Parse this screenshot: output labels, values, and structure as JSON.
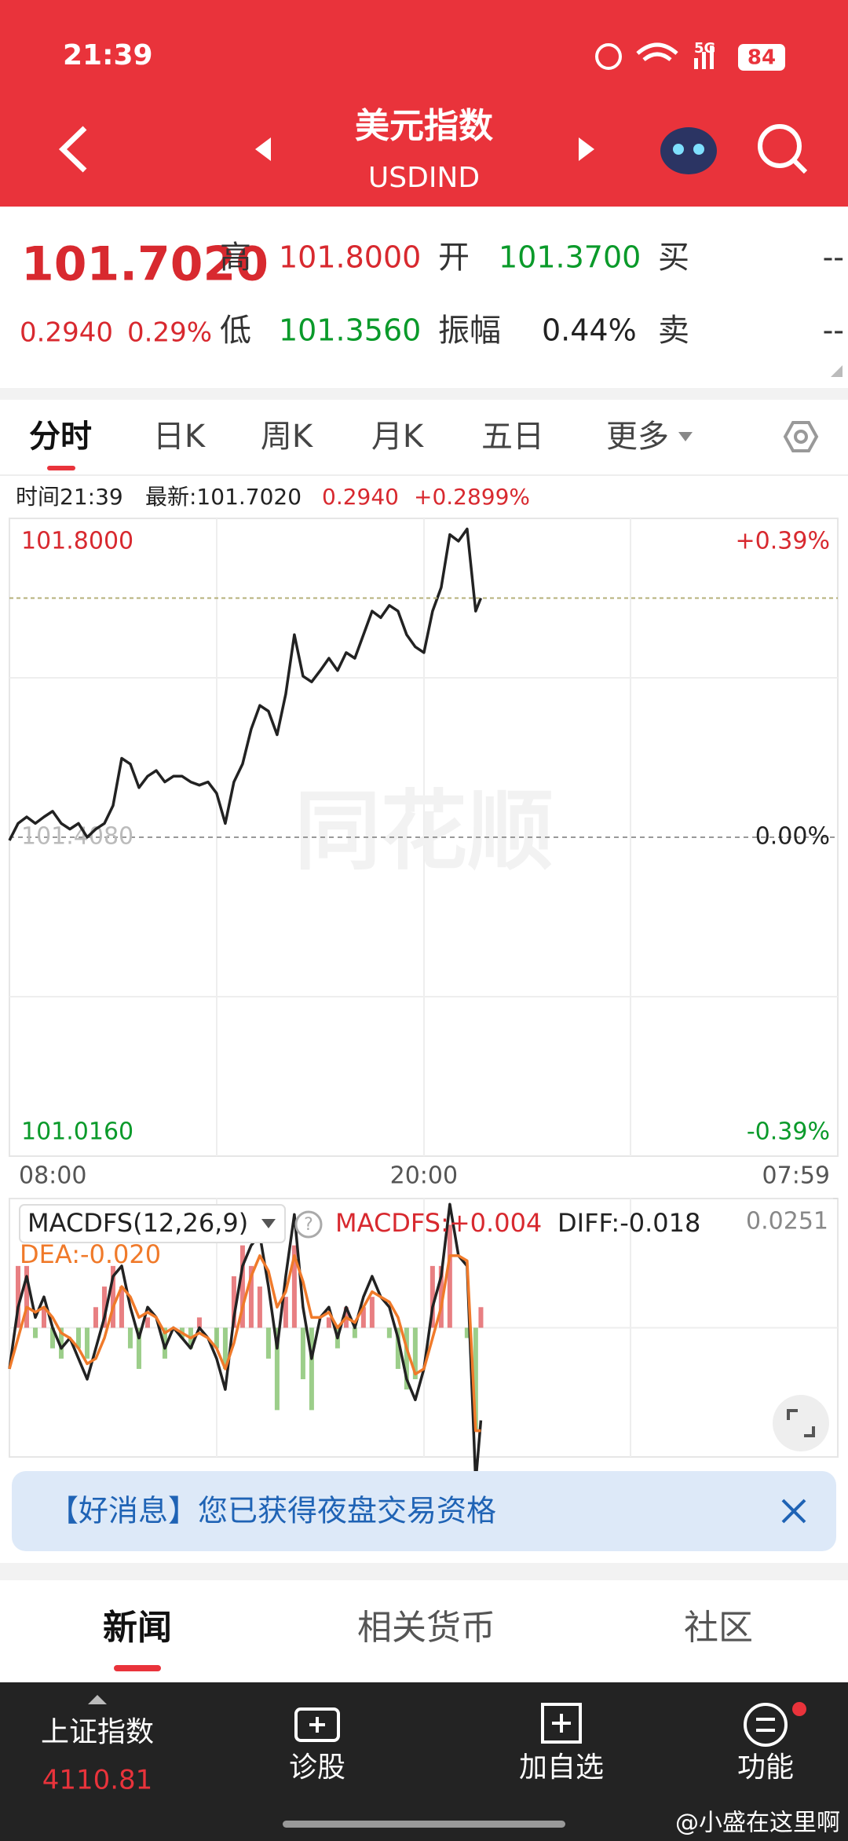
{
  "status_bar": {
    "time": "21:39",
    "network": "5G",
    "battery": "84"
  },
  "header": {
    "title": "美元指数",
    "subtitle": "USDIND"
  },
  "quote": {
    "price": "101.7020",
    "change": "0.2940",
    "change_pct": "0.29%",
    "high_label": "高",
    "high": "101.8000",
    "open_label": "开",
    "open": "101.3700",
    "buy_label": "买",
    "buy": "--",
    "low_label": "低",
    "low": "101.3560",
    "amplitude_label": "振幅",
    "amplitude": "0.44%",
    "sell_label": "卖",
    "sell": "--"
  },
  "tabs": [
    "分时",
    "日K",
    "周K",
    "月K",
    "五日",
    "更多"
  ],
  "info_line": {
    "time": "时间21:39",
    "latest": "最新:101.7020",
    "change": "0.2940",
    "change_pct": "+0.2899%"
  },
  "chart_data": [
    {
      "type": "line",
      "watermark": "同花顺",
      "x": [
        "08:00",
        "08:15",
        "08:30",
        "08:45",
        "09:00",
        "09:15",
        "09:30",
        "09:45",
        "10:00",
        "10:15",
        "10:30",
        "10:45",
        "11:00",
        "11:15",
        "11:30",
        "11:45",
        "12:00",
        "12:15",
        "12:30",
        "12:45",
        "13:00",
        "13:15",
        "13:30",
        "13:45",
        "14:00",
        "14:15",
        "14:30",
        "14:45",
        "15:00",
        "15:15",
        "15:30",
        "15:45",
        "16:00",
        "16:15",
        "16:30",
        "16:45",
        "17:00",
        "17:15",
        "17:30",
        "17:45",
        "18:00",
        "18:15",
        "18:30",
        "18:45",
        "19:00",
        "19:15",
        "19:30",
        "19:45",
        "20:00",
        "20:15",
        "20:30",
        "20:45",
        "21:00",
        "21:15",
        "21:30",
        "21:39"
      ],
      "xlim": [
        "08:00",
        "07:59"
      ],
      "xticks": [
        "08:00",
        "20:00",
        "07:59"
      ],
      "ylim": [
        101.016,
        101.8
      ],
      "yticks": [
        {
          "value": 101.8,
          "label": "101.8000"
        },
        {
          "value": 101.408,
          "label": "101.4080"
        },
        {
          "value": 101.016,
          "label": "101.0160"
        }
      ],
      "y2lim": [
        -0.39,
        0.39
      ],
      "y2ticks": [
        {
          "value": 0.39,
          "label": "+0.39%"
        },
        {
          "value": 0,
          "label": "0.00%"
        },
        {
          "value": -0.39,
          "label": "-0.39%"
        }
      ],
      "series": [
        {
          "color": "#222222",
          "values": [
            101.404,
            101.425,
            101.433,
            101.425,
            101.433,
            101.44,
            101.425,
            101.418,
            101.425,
            101.408,
            101.418,
            101.425,
            101.447,
            101.505,
            101.498,
            101.469,
            101.483,
            101.49,
            101.476,
            101.483,
            101.483,
            101.476,
            101.472,
            101.476,
            101.462,
            101.425,
            101.476,
            101.498,
            101.541,
            101.57,
            101.563,
            101.534,
            101.584,
            101.657,
            101.606,
            101.599,
            101.613,
            101.628,
            101.613,
            101.635,
            101.628,
            101.657,
            101.686,
            101.678,
            101.693,
            101.686,
            101.657,
            101.642,
            101.635,
            101.686,
            101.715,
            101.78,
            101.772,
            101.787,
            101.686,
            101.702
          ]
        }
      ]
    },
    {
      "type": "macd",
      "title": "MACDFS(12,26,9)",
      "x": [
        "08:00",
        "08:15",
        "08:30",
        "08:45",
        "09:00",
        "09:15",
        "09:30",
        "09:45",
        "10:00",
        "10:15",
        "10:30",
        "10:45",
        "11:00",
        "11:15",
        "11:30",
        "11:45",
        "12:00",
        "12:15",
        "12:30",
        "12:45",
        "13:00",
        "13:15",
        "13:30",
        "13:45",
        "14:00",
        "14:15",
        "14:30",
        "14:45",
        "15:00",
        "15:15",
        "15:30",
        "15:45",
        "16:00",
        "16:15",
        "16:30",
        "16:45",
        "17:00",
        "17:15",
        "17:30",
        "17:45",
        "18:00",
        "18:15",
        "18:30",
        "18:45",
        "19:00",
        "19:15",
        "19:30",
        "19:45",
        "20:00",
        "20:15",
        "20:30",
        "20:45",
        "21:00",
        "21:15",
        "21:30",
        "21:39"
      ],
      "xlim": [
        "08:00",
        "07:59"
      ],
      "ylim": [
        -0.0251,
        0.0251
      ],
      "yticks": [
        {
          "value": 0.0251,
          "label": "0.0251"
        }
      ],
      "series": [
        {
          "label": "MACDFS:+0.004",
          "color": "#d8292f",
          "negative_color": "#5aad3c",
          "values": [
            0,
            0.012,
            0.012,
            -0.002,
            0.004,
            -0.004,
            -0.006,
            0,
            -0.004,
            -0.006,
            0.004,
            0.008,
            0.012,
            0.008,
            -0.004,
            -0.008,
            0.002,
            0,
            -0.006,
            0,
            -0.002,
            -0.004,
            0.002,
            0,
            -0.004,
            -0.008,
            0.01,
            0.016,
            0.012,
            0.008,
            -0.006,
            -0.016,
            0.006,
            0.016,
            -0.01,
            -0.016,
            0,
            0.002,
            -0.004,
            0.004,
            -0.002,
            0.004,
            0.006,
            0,
            -0.002,
            -0.008,
            -0.012,
            -0.01,
            0,
            0.012,
            0.012,
            0.02,
            0,
            -0.002,
            -0.02,
            0.004
          ]
        },
        {
          "label": "DIFF:-0.018",
          "color": "#222222",
          "values": [
            -0.008,
            0.004,
            0.01,
            0.002,
            0.006,
            0,
            -0.004,
            -0.002,
            -0.006,
            -0.01,
            -0.004,
            0.002,
            0.01,
            0.012,
            0.004,
            -0.002,
            0.004,
            0.002,
            -0.004,
            0,
            -0.002,
            -0.004,
            0,
            -0.002,
            -0.006,
            -0.012,
            0.002,
            0.012,
            0.016,
            0.018,
            0.008,
            -0.004,
            0.01,
            0.022,
            0.004,
            -0.006,
            0.002,
            0.004,
            -0.002,
            0.004,
            0,
            0.006,
            0.01,
            0.006,
            0.004,
            -0.002,
            -0.01,
            -0.014,
            -0.008,
            0.004,
            0.01,
            0.024,
            0.014,
            0.012,
            -0.03,
            -0.018
          ]
        },
        {
          "label": "DEA:-0.020",
          "color": "#f07a2a",
          "values": [
            -0.008,
            -0.002,
            0.004,
            0.003,
            0.004,
            0.002,
            -0.001,
            -0.002,
            -0.004,
            -0.007,
            -0.006,
            -0.002,
            0.004,
            0.008,
            0.006,
            0.002,
            0.003,
            0.002,
            -0.001,
            0,
            -0.001,
            -0.002,
            -0.001,
            -0.002,
            -0.004,
            -0.008,
            -0.003,
            0.004,
            0.01,
            0.014,
            0.011,
            0.004,
            0.007,
            0.014,
            0.009,
            0.002,
            0.002,
            0.003,
            0,
            0.002,
            0.001,
            0.004,
            0.007,
            0.006,
            0.005,
            0.002,
            -0.004,
            -0.009,
            -0.008,
            -0.002,
            0.004,
            0.014,
            0.014,
            0.013,
            -0.02,
            -0.02
          ]
        }
      ]
    }
  ],
  "banner": {
    "text": "【好消息】您已获得夜盘交易资格"
  },
  "news_tabs": [
    "新闻",
    "相关货币",
    "社区"
  ],
  "bottom_nav": {
    "index_name": "上证指数",
    "index_value": "4110.81",
    "items": [
      "诊股",
      "加自选",
      "功能"
    ]
  },
  "overlay": "@小盛在这里啊"
}
